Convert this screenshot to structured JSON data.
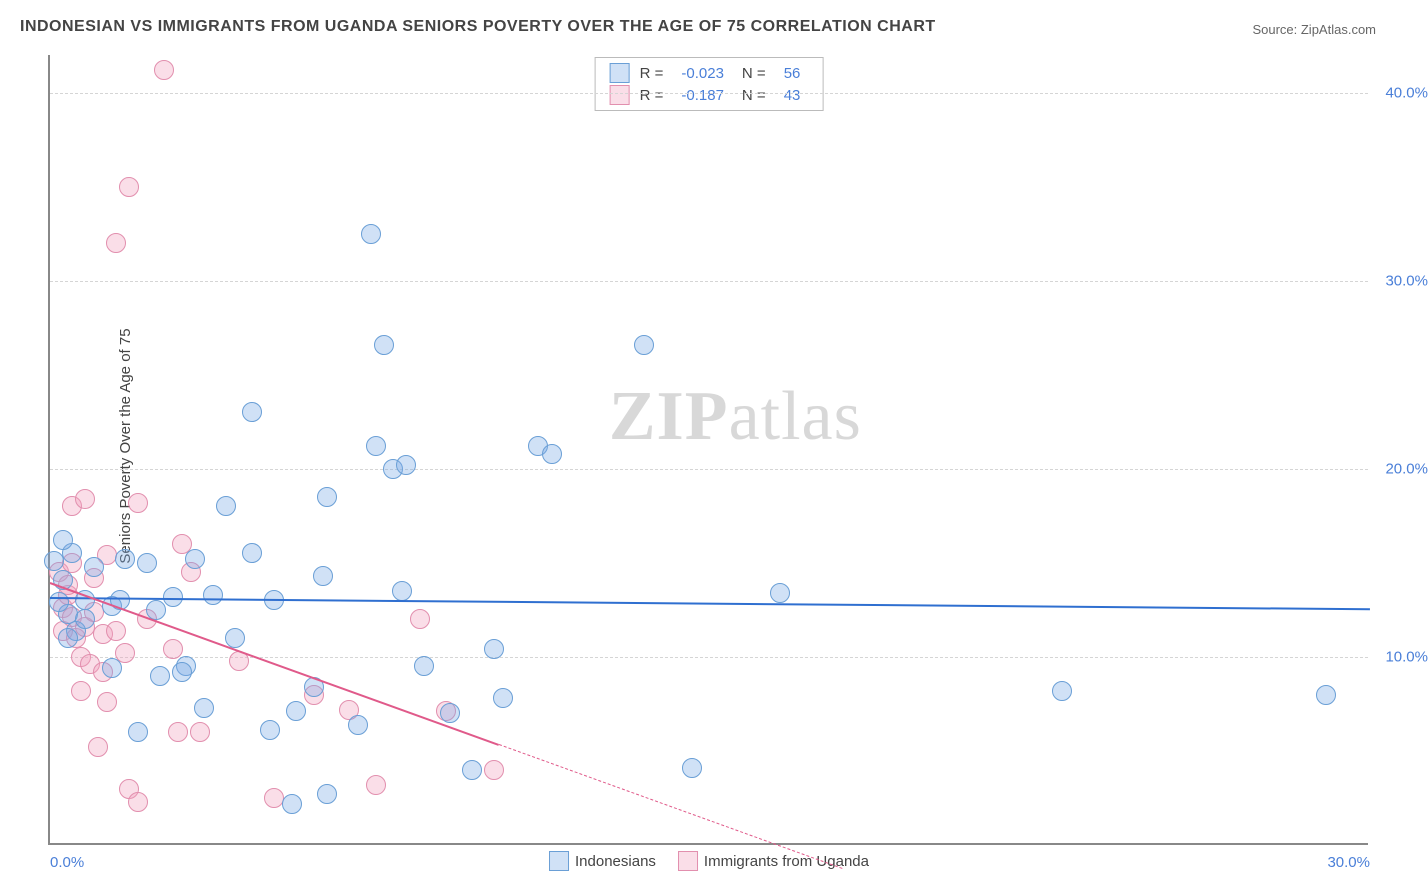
{
  "chart": {
    "title": "INDONESIAN VS IMMIGRANTS FROM UGANDA SENIORS POVERTY OVER THE AGE OF 75 CORRELATION CHART",
    "source": "Source: ZipAtlas.com",
    "ylabel": "Seniors Poverty Over the Age of 75",
    "watermark_a": "ZIP",
    "watermark_b": "atlas",
    "type": "scatter",
    "xlim": [
      0,
      30
    ],
    "ylim": [
      0,
      42
    ],
    "xticks": [
      {
        "v": 0,
        "label": "0.0%",
        "pos": "left"
      },
      {
        "v": 30,
        "label": "30.0%",
        "pos": "right"
      }
    ],
    "yticks": [
      {
        "v": 10,
        "label": "10.0%"
      },
      {
        "v": 20,
        "label": "20.0%"
      },
      {
        "v": 30,
        "label": "30.0%"
      },
      {
        "v": 40,
        "label": "40.0%"
      }
    ],
    "grid_color": "#d5d5d5",
    "background_color": "#ffffff",
    "marker_radius": 10,
    "marker_stroke": 1.3,
    "series": {
      "indonesians": {
        "label": "Indonesians",
        "fill": "rgba(120,170,230,0.35)",
        "stroke": "#6a9fd6",
        "r_label": "R =",
        "r_value": "-0.023",
        "n_label": "N =",
        "n_value": "56",
        "trend": {
          "x1": 0,
          "y1": 13.2,
          "x2": 30,
          "y2": 12.6,
          "color": "#2f6fd0",
          "solid_until_x": 30
        },
        "points": [
          [
            0.1,
            15.1
          ],
          [
            0.5,
            15.5
          ],
          [
            0.3,
            14.1
          ],
          [
            0.4,
            12.3
          ],
          [
            0.6,
            11.4
          ],
          [
            0.8,
            13.0
          ],
          [
            0.8,
            12.0
          ],
          [
            0.3,
            16.2
          ],
          [
            1.0,
            14.8
          ],
          [
            1.4,
            9.4
          ],
          [
            1.7,
            15.2
          ],
          [
            2.2,
            15.0
          ],
          [
            2.0,
            6.0
          ],
          [
            2.4,
            12.5
          ],
          [
            2.5,
            9.0
          ],
          [
            2.8,
            13.2
          ],
          [
            3.1,
            9.5
          ],
          [
            3.3,
            15.2
          ],
          [
            3.5,
            7.3
          ],
          [
            3.7,
            13.3
          ],
          [
            4.0,
            18.0
          ],
          [
            4.6,
            15.5
          ],
          [
            4.6,
            23.0
          ],
          [
            5.0,
            6.1
          ],
          [
            5.5,
            2.2
          ],
          [
            5.6,
            7.1
          ],
          [
            6.0,
            8.4
          ],
          [
            6.2,
            14.3
          ],
          [
            6.3,
            18.5
          ],
          [
            6.3,
            2.7
          ],
          [
            7.0,
            6.4
          ],
          [
            7.3,
            32.5
          ],
          [
            7.4,
            21.2
          ],
          [
            7.6,
            26.6
          ],
          [
            7.8,
            20.0
          ],
          [
            8.0,
            13.5
          ],
          [
            8.1,
            20.2
          ],
          [
            8.5,
            9.5
          ],
          [
            9.1,
            7.0
          ],
          [
            9.6,
            4.0
          ],
          [
            10.1,
            10.4
          ],
          [
            10.3,
            7.8
          ],
          [
            11.1,
            21.2
          ],
          [
            11.4,
            20.8
          ],
          [
            13.5,
            26.6
          ],
          [
            14.6,
            4.1
          ],
          [
            16.6,
            13.4
          ],
          [
            23.0,
            8.2
          ],
          [
            29.0,
            8.0
          ],
          [
            0.4,
            11.0
          ],
          [
            1.4,
            12.7
          ],
          [
            1.6,
            13.0
          ],
          [
            0.2,
            12.9
          ],
          [
            3.0,
            9.2
          ],
          [
            4.2,
            11.0
          ],
          [
            5.1,
            13.0
          ]
        ]
      },
      "uganda": {
        "label": "Immigrants from Uganda",
        "fill": "rgba(240,160,190,0.35)",
        "stroke": "#e28fae",
        "r_label": "R =",
        "r_value": "-0.187",
        "n_label": "N =",
        "n_value": "43",
        "trend": {
          "x1": 0,
          "y1": 14.0,
          "x2": 18,
          "y2": -1.2,
          "color": "#e05a8a",
          "solid_until_x": 10.2
        },
        "points": [
          [
            0.2,
            14.5
          ],
          [
            0.3,
            12.6
          ],
          [
            0.3,
            11.4
          ],
          [
            0.4,
            13.3
          ],
          [
            0.5,
            12.1
          ],
          [
            0.5,
            15.0
          ],
          [
            0.5,
            18.0
          ],
          [
            0.6,
            11.0
          ],
          [
            0.7,
            10.0
          ],
          [
            0.7,
            8.2
          ],
          [
            0.8,
            11.6
          ],
          [
            0.8,
            18.4
          ],
          [
            0.9,
            9.6
          ],
          [
            1.0,
            12.4
          ],
          [
            1.0,
            14.2
          ],
          [
            1.1,
            5.2
          ],
          [
            1.2,
            9.2
          ],
          [
            1.2,
            11.2
          ],
          [
            1.3,
            7.6
          ],
          [
            1.3,
            15.4
          ],
          [
            1.5,
            32.0
          ],
          [
            1.5,
            11.4
          ],
          [
            1.7,
            10.2
          ],
          [
            1.8,
            3.0
          ],
          [
            1.8,
            35.0
          ],
          [
            2.0,
            2.3
          ],
          [
            2.0,
            18.2
          ],
          [
            2.2,
            12.0
          ],
          [
            2.6,
            41.2
          ],
          [
            2.8,
            10.4
          ],
          [
            2.9,
            6.0
          ],
          [
            3.0,
            16.0
          ],
          [
            3.2,
            14.5
          ],
          [
            3.4,
            6.0
          ],
          [
            4.3,
            9.8
          ],
          [
            5.1,
            2.5
          ],
          [
            6.0,
            8.0
          ],
          [
            6.8,
            7.2
          ],
          [
            7.4,
            3.2
          ],
          [
            8.4,
            12.0
          ],
          [
            9.0,
            7.1
          ],
          [
            10.1,
            4.0
          ],
          [
            0.4,
            13.8
          ]
        ]
      }
    }
  }
}
